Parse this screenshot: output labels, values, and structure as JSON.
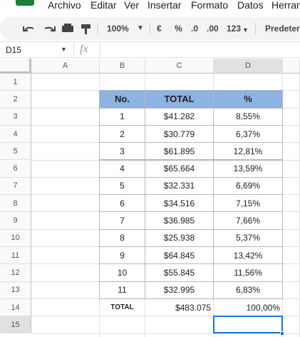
{
  "menu": [
    "Archivo",
    "Editar",
    "Ver",
    "Insertar",
    "Formato",
    "Datos",
    "Herran"
  ],
  "toolbar": {
    "zoom": "100%",
    "currency": "€",
    "percent": "%",
    "decrease_decimal": ".0",
    "increase_decimal": ".00",
    "number_format": "123",
    "font": "Predeterm"
  },
  "name_box": "D15",
  "formula_icon": "fx",
  "columns": [
    "A",
    "B",
    "C",
    "D"
  ],
  "row_numbers": [
    1,
    2,
    3,
    4,
    5,
    6,
    7,
    8,
    9,
    10,
    11,
    12,
    13,
    14,
    15
  ],
  "table": {
    "header": [
      "No.",
      "TOTAL",
      "%"
    ],
    "rows": [
      [
        "1",
        "$41.282",
        "8,55%"
      ],
      [
        "2",
        "$30.779",
        "6,37%"
      ],
      [
        "3",
        "$61.895",
        "12,81%"
      ],
      [
        "4",
        "$65.664",
        "13,59%"
      ],
      [
        "5",
        "$32.331",
        "6,69%"
      ],
      [
        "6",
        "$34.516",
        "7,15%"
      ],
      [
        "7",
        "$36.985",
        "7,66%"
      ],
      [
        "8",
        "$25.938",
        "5,37%"
      ],
      [
        "9",
        "$64.845",
        "13,42%"
      ],
      [
        "10",
        "$55.845",
        "11,56%"
      ],
      [
        "11",
        "$32.995",
        "6,83%"
      ]
    ],
    "total": [
      "TOTAL",
      "$483.075",
      "100,00%"
    ]
  }
}
